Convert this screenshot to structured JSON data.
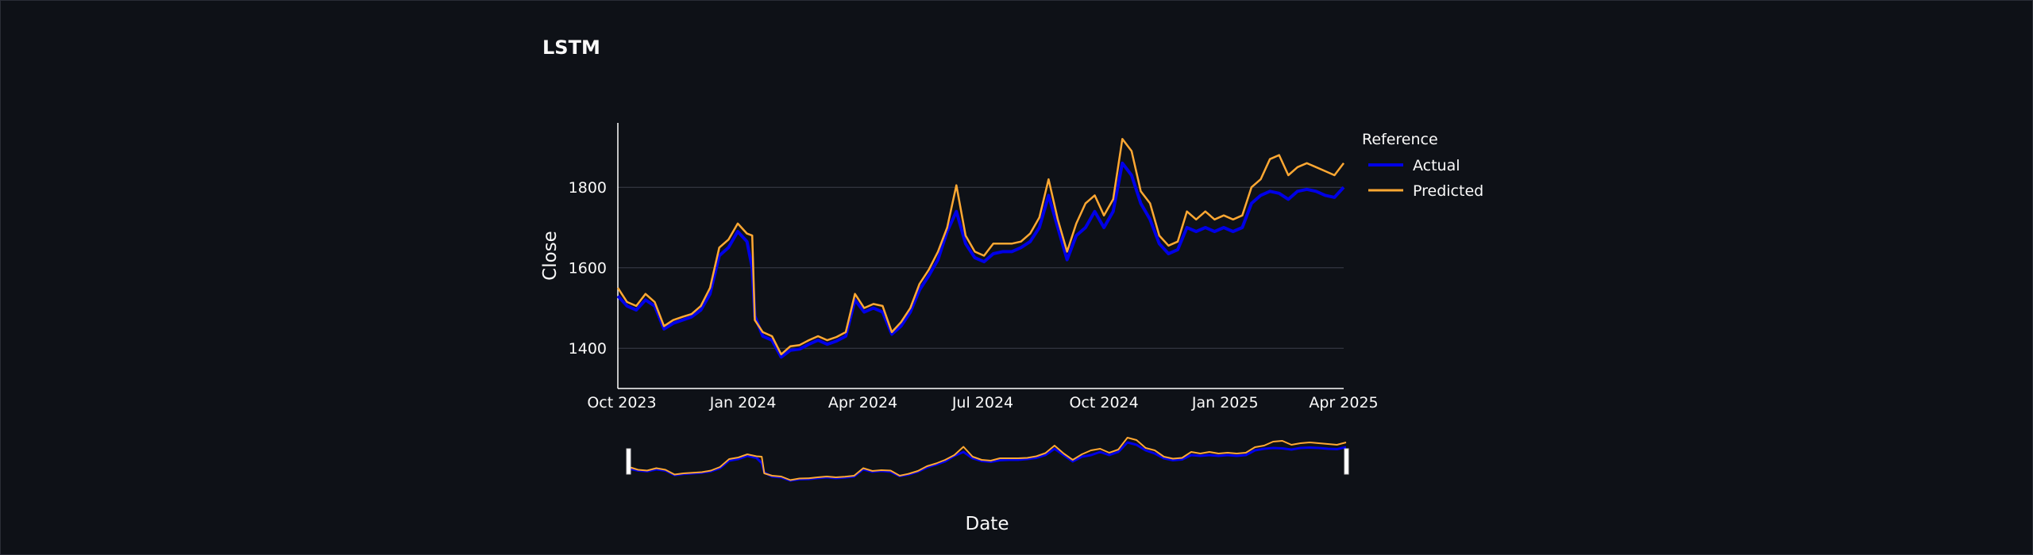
{
  "page": {
    "title": "LSTM"
  },
  "colors": {
    "background": "#0e1117",
    "actual": "#0000e6",
    "predicted": "#ffa833",
    "grid": "#3b3f4a",
    "axis": "#ffffff"
  },
  "chart_data": {
    "type": "line",
    "title": "LSTM",
    "xlabel": "Date",
    "ylabel": "Close",
    "ylim": [
      1300,
      1960
    ],
    "yticks": [
      1400,
      1600,
      1800
    ],
    "xlim": [
      "2023-09-28",
      "2025-04-01"
    ],
    "xticks": [
      {
        "date": "2023-10-01",
        "label": "Oct 2023"
      },
      {
        "date": "2024-01-01",
        "label": "Jan 2024"
      },
      {
        "date": "2024-04-01",
        "label": "Apr 2024"
      },
      {
        "date": "2024-07-01",
        "label": "Jul 2024"
      },
      {
        "date": "2024-10-01",
        "label": "Oct 2024"
      },
      {
        "date": "2025-01-01",
        "label": "Jan 2025"
      },
      {
        "date": "2025-04-01",
        "label": "Apr 2025"
      }
    ],
    "grid": true,
    "legend": {
      "title": "Reference",
      "placement": "top-right"
    },
    "range_slider": true,
    "series": [
      {
        "name": "Actual",
        "color": "#0000e6",
        "points": [
          [
            "2023-09-28",
            1530
          ],
          [
            "2023-10-05",
            1505
          ],
          [
            "2023-10-12",
            1495
          ],
          [
            "2023-10-19",
            1520
          ],
          [
            "2023-10-26",
            1505
          ],
          [
            "2023-11-02",
            1448
          ],
          [
            "2023-11-09",
            1462
          ],
          [
            "2023-11-16",
            1470
          ],
          [
            "2023-11-23",
            1478
          ],
          [
            "2023-11-30",
            1495
          ],
          [
            "2023-12-07",
            1535
          ],
          [
            "2023-12-14",
            1630
          ],
          [
            "2023-12-21",
            1650
          ],
          [
            "2023-12-28",
            1690
          ],
          [
            "2024-01-04",
            1665
          ],
          [
            "2024-01-08",
            1600
          ],
          [
            "2024-01-10",
            1480
          ],
          [
            "2024-01-16",
            1430
          ],
          [
            "2024-01-23",
            1420
          ],
          [
            "2024-01-30",
            1378
          ],
          [
            "2024-02-06",
            1395
          ],
          [
            "2024-02-13",
            1398
          ],
          [
            "2024-02-20",
            1410
          ],
          [
            "2024-02-27",
            1420
          ],
          [
            "2024-03-05",
            1410
          ],
          [
            "2024-03-12",
            1418
          ],
          [
            "2024-03-19",
            1430
          ],
          [
            "2024-03-26",
            1520
          ],
          [
            "2024-04-02",
            1490
          ],
          [
            "2024-04-09",
            1500
          ],
          [
            "2024-04-16",
            1490
          ],
          [
            "2024-04-23",
            1435
          ],
          [
            "2024-04-30",
            1455
          ],
          [
            "2024-05-07",
            1490
          ],
          [
            "2024-05-14",
            1545
          ],
          [
            "2024-05-21",
            1580
          ],
          [
            "2024-05-28",
            1620
          ],
          [
            "2024-06-04",
            1690
          ],
          [
            "2024-06-11",
            1740
          ],
          [
            "2024-06-18",
            1660
          ],
          [
            "2024-06-25",
            1625
          ],
          [
            "2024-07-02",
            1615
          ],
          [
            "2024-07-09",
            1635
          ],
          [
            "2024-07-16",
            1640
          ],
          [
            "2024-07-23",
            1640
          ],
          [
            "2024-07-30",
            1650
          ],
          [
            "2024-08-06",
            1665
          ],
          [
            "2024-08-13",
            1700
          ],
          [
            "2024-08-20",
            1780
          ],
          [
            "2024-08-27",
            1700
          ],
          [
            "2024-09-03",
            1620
          ],
          [
            "2024-09-10",
            1680
          ],
          [
            "2024-09-17",
            1700
          ],
          [
            "2024-09-24",
            1740
          ],
          [
            "2024-10-01",
            1700
          ],
          [
            "2024-10-08",
            1740
          ],
          [
            "2024-10-15",
            1860
          ],
          [
            "2024-10-22",
            1830
          ],
          [
            "2024-10-29",
            1760
          ],
          [
            "2024-11-05",
            1720
          ],
          [
            "2024-11-12",
            1660
          ],
          [
            "2024-11-19",
            1635
          ],
          [
            "2024-11-26",
            1645
          ],
          [
            "2024-12-03",
            1700
          ],
          [
            "2024-12-10",
            1690
          ],
          [
            "2024-12-17",
            1700
          ],
          [
            "2024-12-24",
            1690
          ],
          [
            "2024-12-31",
            1700
          ],
          [
            "2025-01-07",
            1690
          ],
          [
            "2025-01-14",
            1700
          ],
          [
            "2025-01-21",
            1760
          ],
          [
            "2025-01-28",
            1780
          ],
          [
            "2025-02-04",
            1790
          ],
          [
            "2025-02-11",
            1785
          ],
          [
            "2025-02-18",
            1770
          ],
          [
            "2025-02-25",
            1790
          ],
          [
            "2025-03-04",
            1795
          ],
          [
            "2025-03-11",
            1790
          ],
          [
            "2025-03-18",
            1780
          ],
          [
            "2025-03-25",
            1775
          ],
          [
            "2025-04-01",
            1800
          ]
        ]
      },
      {
        "name": "Predicted",
        "color": "#ffa833",
        "points": [
          [
            "2023-09-28",
            1550
          ],
          [
            "2023-10-05",
            1515
          ],
          [
            "2023-10-12",
            1505
          ],
          [
            "2023-10-19",
            1535
          ],
          [
            "2023-10-26",
            1515
          ],
          [
            "2023-11-02",
            1455
          ],
          [
            "2023-11-09",
            1470
          ],
          [
            "2023-11-16",
            1478
          ],
          [
            "2023-11-23",
            1485
          ],
          [
            "2023-11-30",
            1505
          ],
          [
            "2023-12-07",
            1550
          ],
          [
            "2023-12-14",
            1650
          ],
          [
            "2023-12-21",
            1670
          ],
          [
            "2023-12-28",
            1710
          ],
          [
            "2024-01-04",
            1685
          ],
          [
            "2024-01-08",
            1680
          ],
          [
            "2024-01-10",
            1470
          ],
          [
            "2024-01-16",
            1440
          ],
          [
            "2024-01-23",
            1430
          ],
          [
            "2024-01-30",
            1385
          ],
          [
            "2024-02-06",
            1405
          ],
          [
            "2024-02-13",
            1408
          ],
          [
            "2024-02-20",
            1420
          ],
          [
            "2024-02-27",
            1430
          ],
          [
            "2024-03-05",
            1420
          ],
          [
            "2024-03-12",
            1428
          ],
          [
            "2024-03-19",
            1440
          ],
          [
            "2024-03-26",
            1535
          ],
          [
            "2024-04-02",
            1500
          ],
          [
            "2024-04-09",
            1510
          ],
          [
            "2024-04-16",
            1505
          ],
          [
            "2024-04-23",
            1440
          ],
          [
            "2024-04-30",
            1465
          ],
          [
            "2024-05-07",
            1500
          ],
          [
            "2024-05-14",
            1560
          ],
          [
            "2024-05-21",
            1595
          ],
          [
            "2024-05-28",
            1640
          ],
          [
            "2024-06-04",
            1700
          ],
          [
            "2024-06-11",
            1805
          ],
          [
            "2024-06-18",
            1680
          ],
          [
            "2024-06-25",
            1640
          ],
          [
            "2024-07-02",
            1630
          ],
          [
            "2024-07-09",
            1660
          ],
          [
            "2024-07-16",
            1660
          ],
          [
            "2024-07-23",
            1660
          ],
          [
            "2024-07-30",
            1665
          ],
          [
            "2024-08-06",
            1685
          ],
          [
            "2024-08-13",
            1725
          ],
          [
            "2024-08-20",
            1820
          ],
          [
            "2024-08-27",
            1720
          ],
          [
            "2024-09-03",
            1640
          ],
          [
            "2024-09-10",
            1710
          ],
          [
            "2024-09-17",
            1760
          ],
          [
            "2024-09-24",
            1780
          ],
          [
            "2024-10-01",
            1730
          ],
          [
            "2024-10-08",
            1770
          ],
          [
            "2024-10-15",
            1920
          ],
          [
            "2024-10-22",
            1890
          ],
          [
            "2024-10-29",
            1790
          ],
          [
            "2024-11-05",
            1760
          ],
          [
            "2024-11-12",
            1680
          ],
          [
            "2024-11-19",
            1655
          ],
          [
            "2024-11-26",
            1665
          ],
          [
            "2024-12-03",
            1740
          ],
          [
            "2024-12-10",
            1720
          ],
          [
            "2024-12-17",
            1740
          ],
          [
            "2024-12-24",
            1720
          ],
          [
            "2024-12-31",
            1730
          ],
          [
            "2025-01-07",
            1720
          ],
          [
            "2025-01-14",
            1730
          ],
          [
            "2025-01-21",
            1800
          ],
          [
            "2025-01-28",
            1820
          ],
          [
            "2025-02-04",
            1870
          ],
          [
            "2025-02-11",
            1880
          ],
          [
            "2025-02-18",
            1830
          ],
          [
            "2025-02-25",
            1850
          ],
          [
            "2025-03-04",
            1860
          ],
          [
            "2025-03-11",
            1850
          ],
          [
            "2025-03-18",
            1840
          ],
          [
            "2025-03-25",
            1830
          ],
          [
            "2025-04-01",
            1860
          ]
        ]
      }
    ]
  }
}
